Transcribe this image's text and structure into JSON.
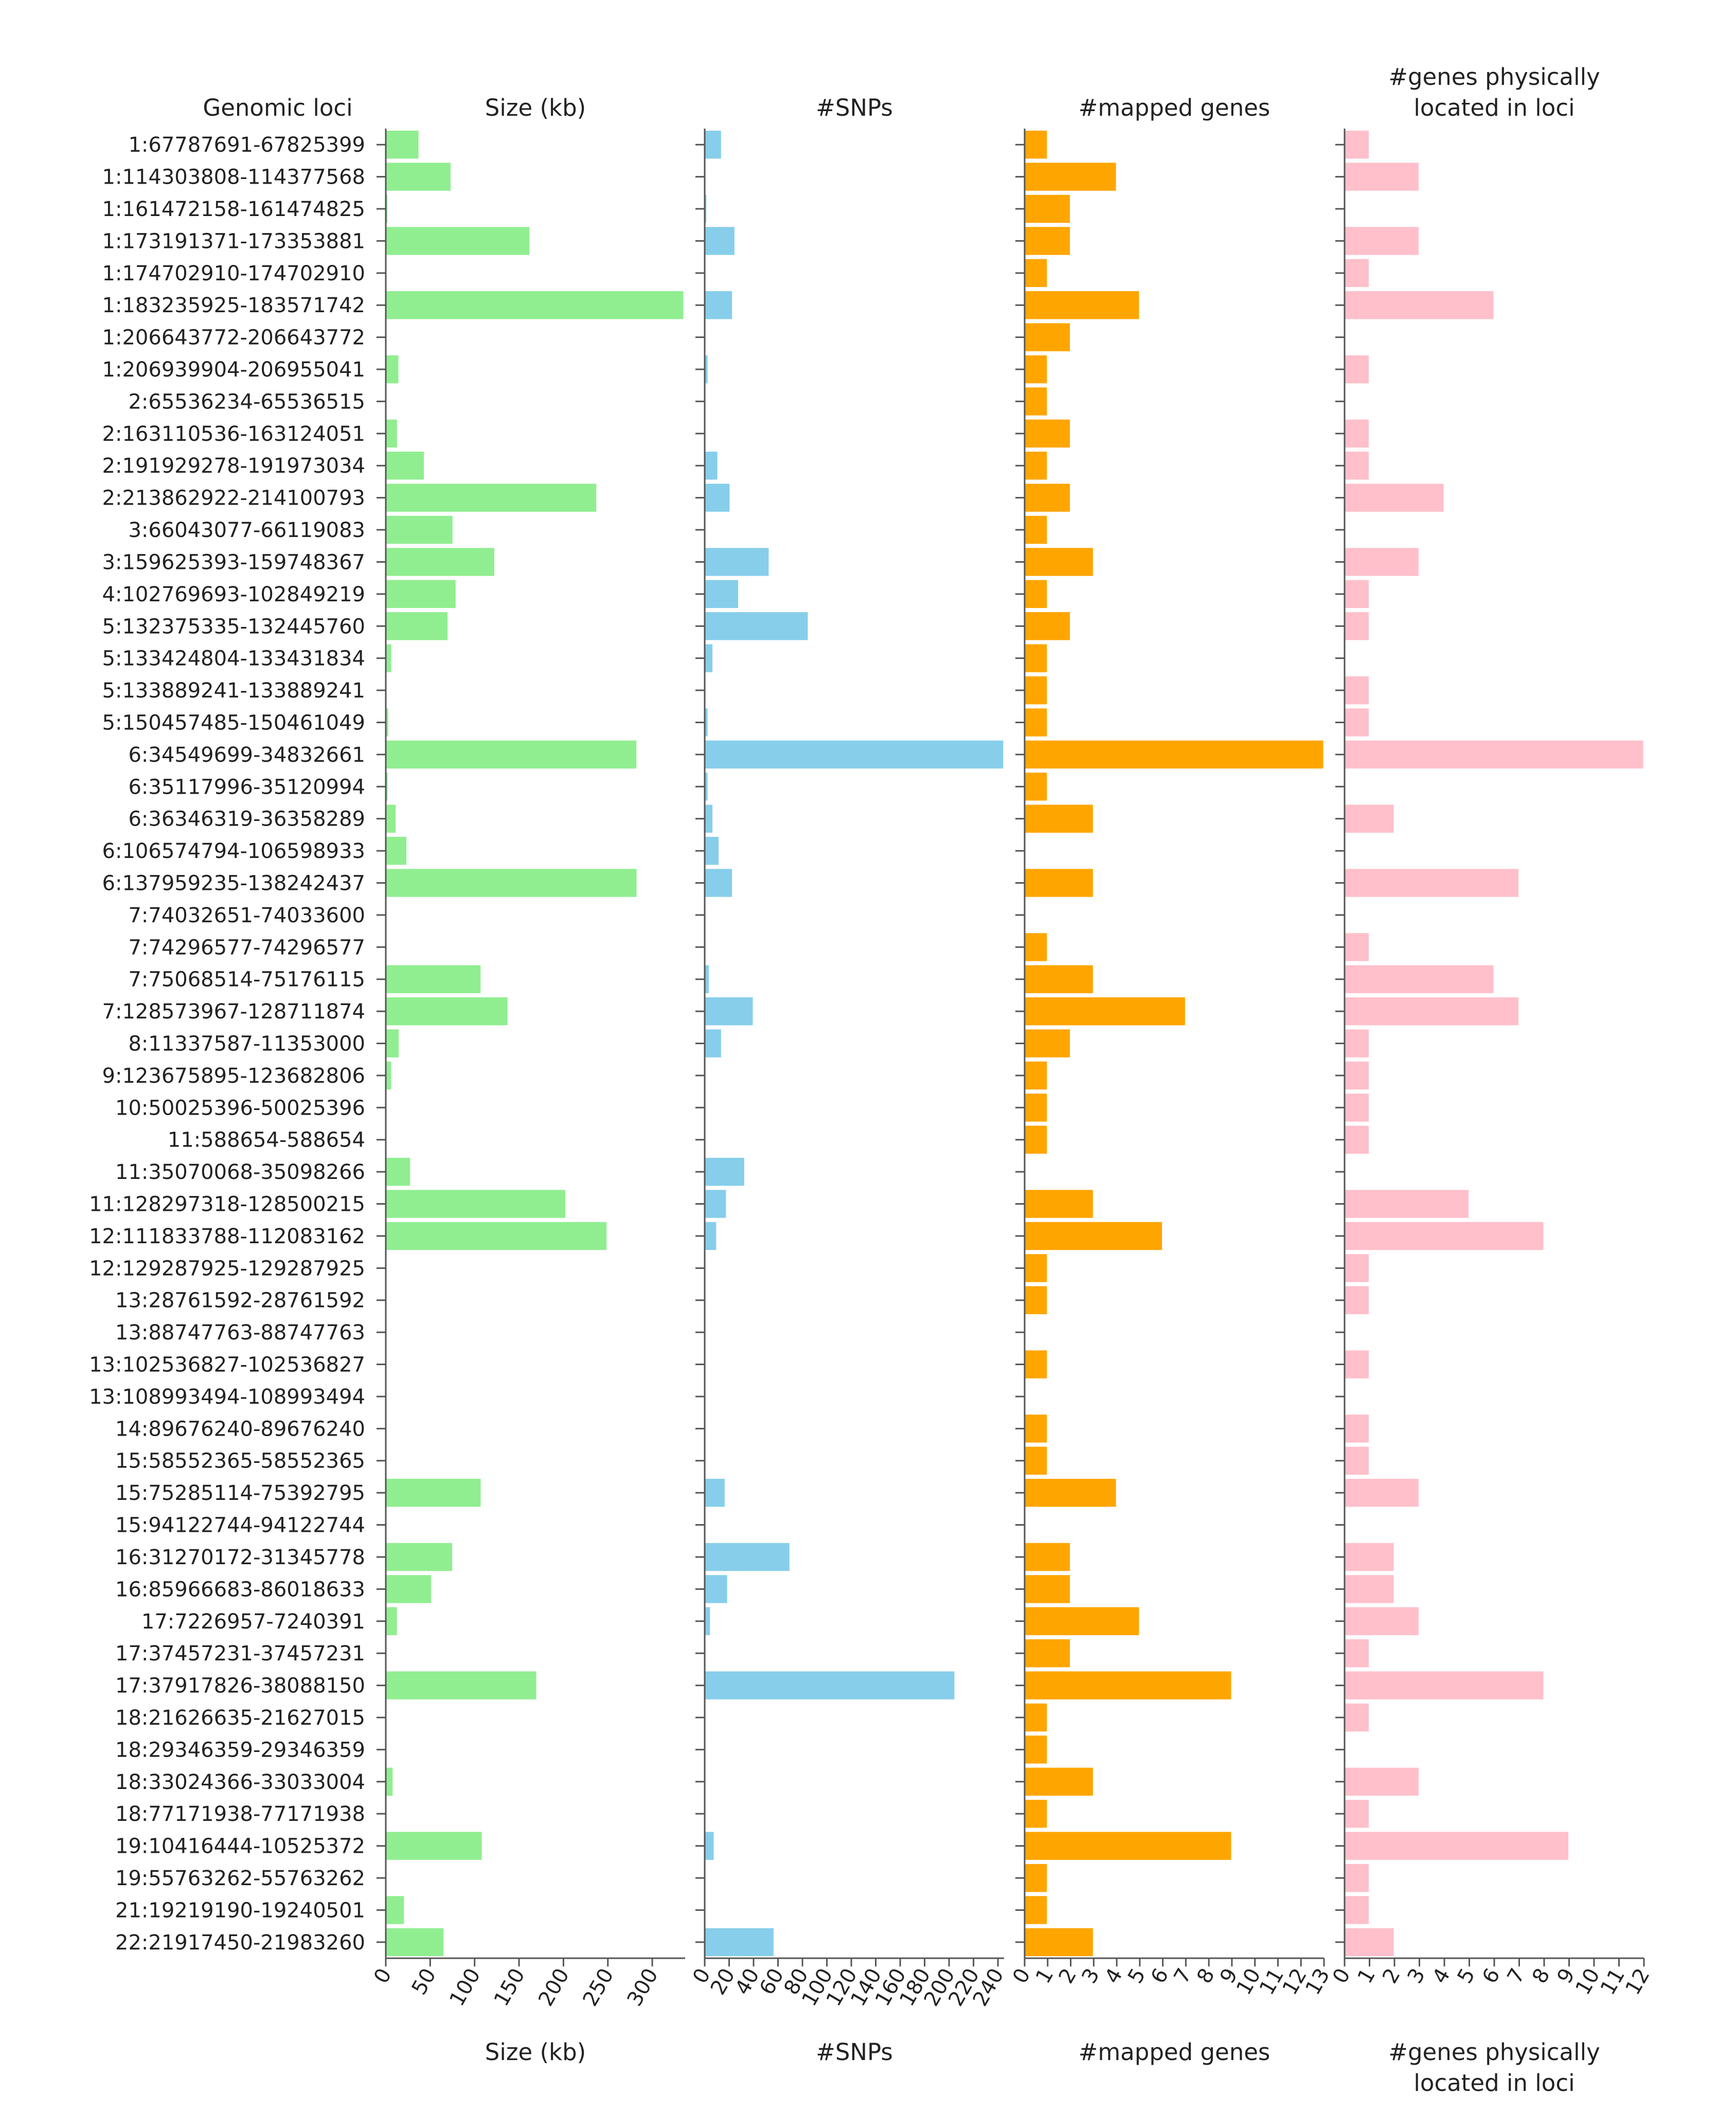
{
  "chart_data": {
    "type": "bar",
    "orientation": "horizontal",
    "category_header": "Genomic loci",
    "categories": [
      "1:67787691-67825399",
      "1:114303808-114377568",
      "1:161472158-161474825",
      "1:173191371-173353881",
      "1:174702910-174702910",
      "1:183235925-183571742",
      "1:206643772-206643772",
      "1:206939904-206955041",
      "2:65536234-65536515",
      "2:163110536-163124051",
      "2:191929278-191973034",
      "2:213862922-214100793",
      "3:66043077-66119083",
      "3:159625393-159748367",
      "4:102769693-102849219",
      "5:132375335-132445760",
      "5:133424804-133431834",
      "5:133889241-133889241",
      "5:150457485-150461049",
      "6:34549699-34832661",
      "6:35117996-35120994",
      "6:36346319-36358289",
      "6:106574794-106598933",
      "6:137959235-138242437",
      "7:74032651-74033600",
      "7:74296577-74296577",
      "7:75068514-75176115",
      "7:128573967-128711874",
      "8:11337587-11353000",
      "9:123675895-123682806",
      "10:50025396-50025396",
      "11:588654-588654",
      "11:35070068-35098266",
      "11:128297318-128500215",
      "12:111833788-112083162",
      "12:129287925-129287925",
      "13:28761592-28761592",
      "13:88747763-88747763",
      "13:102536827-102536827",
      "13:108993494-108993494",
      "14:89676240-89676240",
      "15:58552365-58552365",
      "15:75285114-75392795",
      "15:94122744-94122744",
      "16:31270172-31345778",
      "16:85966683-86018633",
      "17:7226957-7240391",
      "17:37457231-37457231",
      "17:37917826-38088150",
      "18:21626635-21627015",
      "18:29346359-29346359",
      "18:33024366-33033004",
      "18:77171938-77171938",
      "19:10416444-10525372",
      "19:55763262-55763262",
      "21:19219190-19240501",
      "22:21917450-21983260"
    ],
    "panels": [
      {
        "title_lines": [
          "Size (kb)"
        ],
        "bottom_label_lines": [
          "Size (kb)"
        ],
        "color": "#90ee90",
        "xlim": [
          0,
          337
        ],
        "ticks": [
          "0",
          "50",
          "100",
          "150",
          "200",
          "250",
          "300"
        ],
        "tick_values": [
          0,
          50,
          100,
          150,
          200,
          250,
          300
        ],
        "values": [
          37.7,
          73.8,
          2.7,
          162.5,
          0,
          335.8,
          0,
          15.1,
          0.3,
          13.5,
          43.8,
          237.9,
          76,
          123,
          79.5,
          70.4,
          7,
          0,
          3.6,
          283,
          3,
          12,
          24.1,
          283.2,
          0.9,
          0,
          107.6,
          137.9,
          15.4,
          6.9,
          0,
          0,
          28.2,
          202.9,
          249.4,
          0,
          0,
          0,
          0,
          0,
          0,
          0,
          107.7,
          0,
          75.6,
          51.9,
          13.4,
          0,
          170.3,
          0.4,
          0,
          8.6,
          0,
          108.9,
          0,
          21.3,
          65.8
        ]
      },
      {
        "title_lines": [
          "#SNPs"
        ],
        "bottom_label_lines": [
          "#SNPs"
        ],
        "color": "#87ceeb",
        "xlim": [
          0,
          245
        ],
        "ticks": [
          "0",
          "20",
          "40",
          "60",
          "80",
          "100",
          "120",
          "140",
          "160",
          "180",
          "200",
          "220",
          "240"
        ],
        "tick_values": [
          0,
          20,
          40,
          60,
          80,
          100,
          120,
          140,
          160,
          180,
          200,
          220,
          240
        ],
        "values": [
          14,
          0,
          2,
          25,
          0,
          23,
          0,
          3,
          0,
          0,
          11,
          21,
          0,
          53,
          28,
          85,
          7,
          0,
          3,
          245,
          3,
          7,
          12,
          23,
          0,
          0,
          4,
          40,
          14,
          0,
          0,
          0,
          33,
          18,
          10,
          0,
          0,
          0,
          0,
          0,
          0,
          0,
          17,
          0,
          70,
          19,
          5,
          0,
          205,
          0,
          0,
          0,
          0,
          8,
          0,
          0,
          57
        ]
      },
      {
        "title_lines": [
          "#mapped genes"
        ],
        "bottom_label_lines": [
          "#mapped genes"
        ],
        "color": "#ffa500",
        "xlim": [
          0,
          13
        ],
        "ticks": [
          "0",
          "1",
          "2",
          "3",
          "4",
          "5",
          "6",
          "7",
          "8",
          "9",
          "10",
          "11",
          "12",
          "13"
        ],
        "tick_values": [
          0,
          1,
          2,
          3,
          4,
          5,
          6,
          7,
          8,
          9,
          10,
          11,
          12,
          13
        ],
        "values": [
          1,
          4,
          2,
          2,
          1,
          5,
          2,
          1,
          1,
          2,
          1,
          2,
          1,
          3,
          1,
          2,
          1,
          1,
          1,
          13,
          1,
          3,
          0,
          3,
          0,
          1,
          3,
          7,
          2,
          1,
          1,
          1,
          0,
          3,
          6,
          1,
          1,
          0,
          1,
          0,
          1,
          1,
          4,
          0,
          2,
          2,
          5,
          2,
          9,
          1,
          1,
          3,
          1,
          9,
          1,
          1,
          3
        ]
      },
      {
        "title_lines": [
          "#genes physically",
          "located in loci"
        ],
        "bottom_label_lines": [
          "#genes physically",
          "located in loci"
        ],
        "color": "#ffc0cb",
        "xlim": [
          0,
          12
        ],
        "ticks": [
          "0",
          "1",
          "2",
          "3",
          "4",
          "5",
          "6",
          "7",
          "8",
          "9",
          "10",
          "11",
          "12"
        ],
        "tick_values": [
          0,
          1,
          2,
          3,
          4,
          5,
          6,
          7,
          8,
          9,
          10,
          11,
          12
        ],
        "values": [
          1,
          3,
          0,
          3,
          1,
          6,
          0,
          1,
          0,
          1,
          1,
          4,
          0,
          3,
          1,
          1,
          0,
          1,
          1,
          12,
          0,
          2,
          0,
          7,
          0,
          1,
          6,
          7,
          1,
          1,
          1,
          1,
          0,
          5,
          8,
          1,
          1,
          0,
          1,
          0,
          1,
          1,
          3,
          0,
          2,
          2,
          3,
          1,
          8,
          1,
          0,
          3,
          1,
          9,
          1,
          1,
          2
        ]
      }
    ],
    "grid": false,
    "legend": "none"
  }
}
